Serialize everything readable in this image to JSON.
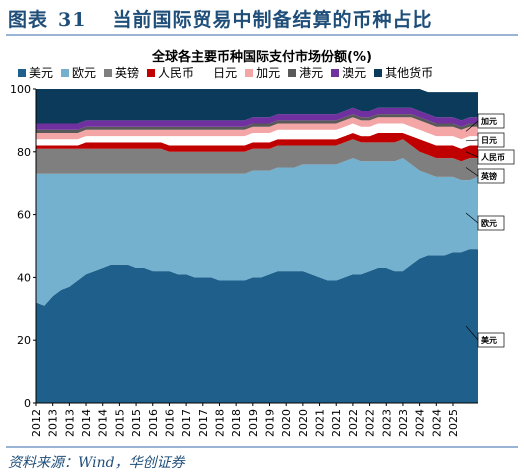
{
  "figure": {
    "label": "图表",
    "number": "31",
    "title": "当前国际贸易中制备结算的币种占比"
  },
  "source": "资料来源：Wind，华创证券",
  "chart_data": {
    "type": "area",
    "stacked": true,
    "title": "全球各主要币种国际支付市场份额(%)",
    "xlabel": "",
    "ylabel": "",
    "ylim": [
      0,
      100
    ],
    "yticks": [
      0,
      20,
      40,
      60,
      80,
      100
    ],
    "xlim": [
      2012.0,
      2025.25
    ],
    "xticks": [
      "2012",
      "2013",
      "2013",
      "2014",
      "2014",
      "2015",
      "2015",
      "2016",
      "2016",
      "2017",
      "2017",
      "2018",
      "2018",
      "2019",
      "2019",
      "2020",
      "2020",
      "2021",
      "2021",
      "2022",
      "2022",
      "2023",
      "2023",
      "2024",
      "2024",
      "2025"
    ],
    "xtick_values": [
      2012.0,
      2012.5,
      2013.0,
      2013.5,
      2014.0,
      2014.5,
      2015.0,
      2015.5,
      2016.0,
      2016.5,
      2017.0,
      2017.5,
      2018.0,
      2018.5,
      2019.0,
      2019.5,
      2020.0,
      2020.5,
      2021.0,
      2021.5,
      2022.0,
      2022.5,
      2023.0,
      2023.5,
      2024.0,
      2024.5
    ],
    "x": [
      2012.0,
      2012.25,
      2012.5,
      2012.75,
      2013.0,
      2013.25,
      2013.5,
      2013.75,
      2014.0,
      2014.25,
      2014.5,
      2014.75,
      2015.0,
      2015.25,
      2015.5,
      2015.75,
      2016.0,
      2016.25,
      2016.5,
      2016.75,
      2017.0,
      2017.25,
      2017.5,
      2017.75,
      2018.0,
      2018.25,
      2018.5,
      2018.75,
      2019.0,
      2019.25,
      2019.5,
      2019.75,
      2020.0,
      2020.25,
      2020.5,
      2020.75,
      2021.0,
      2021.25,
      2021.5,
      2021.75,
      2022.0,
      2022.25,
      2022.5,
      2022.75,
      2023.0,
      2023.25,
      2023.5,
      2023.75,
      2024.0,
      2024.25,
      2024.5,
      2024.75,
      2025.0,
      2025.25
    ],
    "series": [
      {
        "name": "美元",
        "color": "#1f5f8b",
        "values": [
          32,
          31,
          34,
          36,
          37,
          39,
          41,
          42,
          43,
          44,
          44,
          44,
          43,
          43,
          42,
          42,
          42,
          41,
          41,
          40,
          40,
          40,
          39,
          39,
          39,
          39,
          40,
          40,
          41,
          42,
          42,
          42,
          42,
          41,
          40,
          39,
          39,
          40,
          41,
          41,
          42,
          43,
          43,
          42,
          42,
          44,
          46,
          47,
          47,
          47,
          48,
          48,
          49,
          49
        ]
      },
      {
        "name": "欧元",
        "color": "#73b1cf",
        "values": [
          41,
          42,
          39,
          37,
          36,
          34,
          32,
          31,
          30,
          29,
          29,
          29,
          30,
          30,
          31,
          31,
          31,
          32,
          32,
          33,
          33,
          33,
          34,
          34,
          34,
          34,
          34,
          34,
          33,
          33,
          33,
          33,
          34,
          35,
          36,
          37,
          37,
          37,
          37,
          36,
          35,
          34,
          34,
          35,
          36,
          32,
          28,
          26,
          25,
          25,
          24,
          23,
          22,
          23
        ]
      },
      {
        "name": "英镑",
        "color": "#7f7f7f",
        "values": [
          8,
          8,
          8,
          8,
          8,
          8,
          8,
          8,
          8,
          8,
          8,
          8,
          8,
          8,
          8,
          8,
          7,
          7,
          7,
          7,
          7,
          7,
          7,
          7,
          7,
          7,
          7,
          7,
          7,
          7,
          7,
          7,
          6,
          6,
          6,
          6,
          6,
          6,
          6,
          6,
          6,
          6,
          6,
          6,
          6,
          6,
          6,
          6,
          6,
          6,
          6,
          6,
          7,
          6
        ]
      },
      {
        "name": "人民币",
        "color": "#c00000",
        "values": [
          1,
          1,
          1,
          1,
          1,
          1,
          2,
          2,
          2,
          2,
          2,
          2,
          2,
          2,
          2,
          2,
          2,
          2,
          2,
          2,
          2,
          2,
          2,
          2,
          2,
          2,
          2,
          2,
          2,
          2,
          2,
          2,
          2,
          2,
          2,
          2,
          2,
          2,
          2,
          2,
          2,
          3,
          3,
          3,
          2,
          3,
          4,
          4,
          4,
          4,
          4,
          4,
          4,
          4
        ]
      },
      {
        "name": "日元",
        "color": "#ffffff",
        "values": [
          2,
          2,
          2,
          2,
          2,
          2,
          2,
          2,
          2,
          2,
          2,
          2,
          2,
          2,
          2,
          2,
          3,
          3,
          3,
          3,
          3,
          3,
          3,
          3,
          3,
          3,
          3,
          3,
          3,
          3,
          3,
          3,
          3,
          3,
          3,
          3,
          3,
          3,
          3,
          3,
          3,
          3,
          3,
          3,
          3,
          3,
          3,
          3,
          3,
          3,
          3,
          3,
          3,
          3
        ]
      },
      {
        "name": "加元",
        "color": "#f4a6a6",
        "values": [
          2,
          2,
          2,
          2,
          2,
          2,
          2,
          2,
          2,
          2,
          2,
          2,
          2,
          2,
          2,
          2,
          2,
          2,
          2,
          2,
          2,
          2,
          2,
          2,
          2,
          2,
          2,
          2,
          2,
          2,
          2,
          2,
          2,
          2,
          2,
          2,
          2,
          2,
          2,
          2,
          2,
          2,
          2,
          2,
          2,
          3,
          3,
          3,
          3,
          3,
          3,
          3,
          3,
          3
        ]
      },
      {
        "name": "港元",
        "color": "#595959",
        "values": [
          1,
          1,
          1,
          1,
          1,
          1,
          1,
          1,
          1,
          1,
          1,
          1,
          1,
          1,
          1,
          1,
          1,
          1,
          1,
          1,
          1,
          1,
          1,
          1,
          1,
          1,
          1,
          1,
          1,
          1,
          1,
          1,
          1,
          1,
          1,
          1,
          1,
          1,
          1,
          1,
          1,
          1,
          1,
          1,
          1,
          1,
          1,
          1,
          1,
          1,
          1,
          1,
          1,
          1
        ]
      },
      {
        "name": "澳元",
        "color": "#7030a0",
        "values": [
          2,
          2,
          2,
          2,
          2,
          2,
          2,
          2,
          2,
          2,
          2,
          2,
          2,
          2,
          2,
          2,
          2,
          2,
          2,
          2,
          2,
          2,
          2,
          2,
          2,
          2,
          2,
          2,
          2,
          2,
          2,
          2,
          2,
          2,
          2,
          2,
          2,
          2,
          2,
          2,
          2,
          2,
          2,
          2,
          2,
          2,
          2,
          2,
          2,
          2,
          2,
          2,
          2,
          2
        ]
      },
      {
        "name": "其他货币",
        "color": "#0b3a5a",
        "values": [
          11,
          11,
          11,
          11,
          11,
          11,
          10,
          10,
          10,
          10,
          10,
          10,
          10,
          10,
          10,
          10,
          10,
          10,
          10,
          10,
          10,
          10,
          10,
          10,
          10,
          10,
          9,
          9,
          9,
          8,
          8,
          8,
          8,
          8,
          8,
          8,
          8,
          7,
          6,
          7,
          7,
          6,
          6,
          6,
          6,
          6,
          7,
          7,
          8,
          8,
          8,
          9,
          8,
          8
        ]
      }
    ],
    "legend_position": "top",
    "grid": false,
    "annotations": [
      {
        "text": "加元",
        "series": "加元"
      },
      {
        "text": "日元",
        "series": "日元"
      },
      {
        "text": "人民币",
        "series": "人民币"
      },
      {
        "text": "英镑",
        "series": "英镑"
      },
      {
        "text": "欧元",
        "series": "欧元"
      },
      {
        "text": "美元",
        "series": "美元"
      }
    ]
  }
}
